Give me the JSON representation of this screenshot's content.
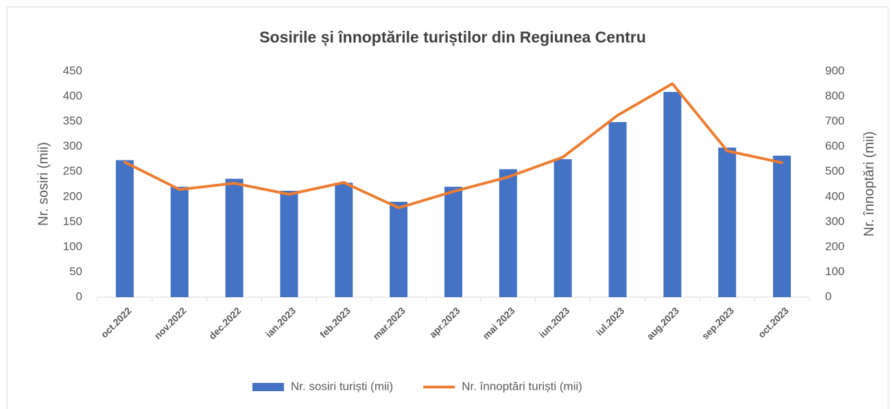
{
  "chart_data": {
    "type": "bar-line",
    "title": "Sosirile și înnoptările turiștilor din Regiunea Centru",
    "y_label": "Nr. sosiri (mii)",
    "y2_label": "Nr. înnoptări (mii)",
    "categories": [
      "oct.2022",
      "nov.2022",
      "dec.2022",
      "ian.2023",
      "feb.2023",
      "mar.2023",
      "apr.2023",
      "mai 2023",
      "iun.2023",
      "iul.2023",
      "aug.2023",
      "sep.2023",
      "oct.2023"
    ],
    "series": [
      {
        "name": "Nr. sosiri turiști (mii)",
        "type": "bar",
        "color": "#4472c4",
        "values": [
          273,
          220,
          236,
          212,
          228,
          190,
          220,
          255,
          275,
          349,
          409,
          298,
          282
        ]
      },
      {
        "name": "Nr. înnoptări turiști (mii)",
        "type": "line",
        "axis": "y2",
        "color": "#ed7d31",
        "values": [
          538,
          429,
          454,
          410,
          457,
          356,
          421,
          479,
          558,
          725,
          851,
          583,
          536
        ]
      }
    ],
    "ylim": [
      0,
      450
    ],
    "yticks": [
      0,
      50,
      100,
      150,
      200,
      250,
      300,
      350,
      400,
      450
    ],
    "y2lim": [
      0,
      900
    ],
    "y2ticks": [
      0,
      100,
      200,
      300,
      400,
      500,
      600,
      700,
      800,
      900
    ],
    "legend": "bottom"
  }
}
